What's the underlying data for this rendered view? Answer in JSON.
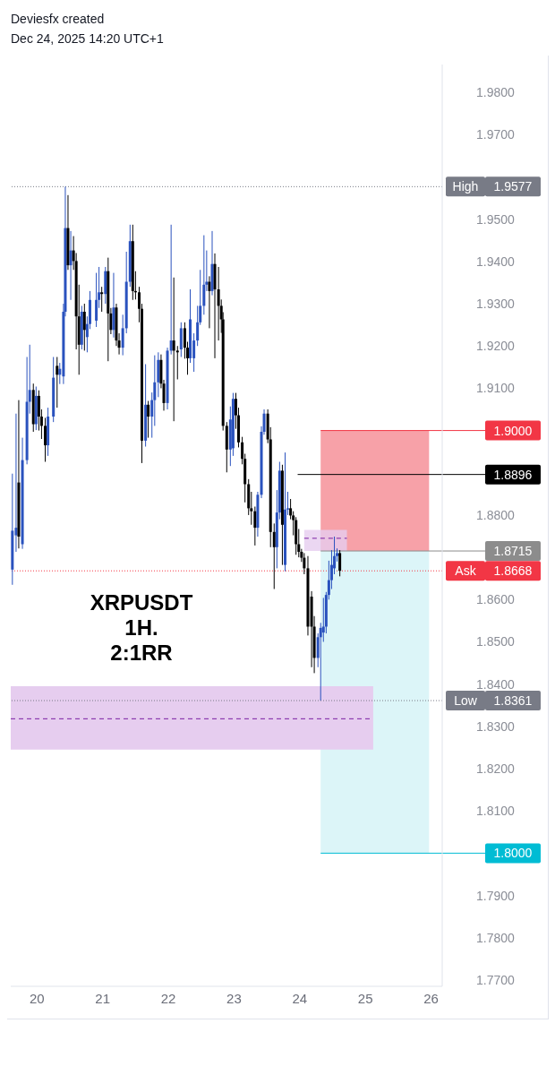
{
  "chart_data": {
    "type": "candlestick",
    "title": "XRPUSDT 1H. 2:1RR",
    "annotations": [
      "Deviesfx created",
      "Dec 24, 2025 14:20 UTC+1"
    ],
    "colors": [
      "#2a52be",
      "#2a52be",
      "#000000",
      "#2a52be",
      "#2a52be",
      "#2a52be",
      "#000000",
      "#2a52be",
      "#000000",
      "#000000",
      "#000000",
      "#2a52be",
      "#2a52be",
      "#000000",
      "#2a52be",
      "#2a52be",
      "#2a52be",
      "#000000",
      "#2a52be",
      "#000000",
      "#000000",
      "#000000",
      "#2a52be",
      "#000000",
      "#2a52be",
      "#2a52be",
      "#2a52be",
      "#2a52be",
      "#000000",
      "#2a52be",
      "#000000",
      "#000000",
      "#2a52be",
      "#000000",
      "#000000",
      "#2a52be",
      "#2a52be",
      "#2a52be",
      "#000000",
      "#000000",
      "#000000",
      "#000000",
      "#2a52be",
      "#000000",
      "#2a52be",
      "#2a52be",
      "#2a52be",
      "#000000",
      "#000000",
      "#2a52be",
      "#2a52be",
      "#000000",
      "#000000",
      "#2a52be",
      "#000000",
      "#000000",
      "#2a52be",
      "#2a52be",
      "#2a52be",
      "#2a52be",
      "#2a52be",
      "#2a52be",
      "#000000",
      "#2a52be",
      "#000000",
      "#000000",
      "#000000",
      "#000000",
      "#000000",
      "#2a52be",
      "#2a52be",
      "#000000",
      "#000000",
      "#000000",
      "#000000",
      "#000000",
      "#000000",
      "#000000",
      "#2a52be",
      "#2a52be",
      "#2a52be",
      "#000000",
      "#000000",
      "#000000",
      "#2a52be",
      "#2a52be",
      "#000000",
      "#2a52be",
      "#2a52be",
      "#000000",
      "#000000",
      "#000000",
      "#000000",
      "#000000",
      "#000000",
      "#000000",
      "#000000",
      "#000000",
      "#2a52be",
      "#2a52be",
      "#2a52be",
      "#2a52be",
      "#2a52be",
      "#2a52be",
      "#2a52be",
      "#2a52be",
      "#000000"
    ],
    "x": [
      19.625,
      19.681,
      19.722,
      19.778,
      19.847,
      19.889,
      19.944,
      19.986,
      20.028,
      20.069,
      20.125,
      20.167,
      20.25,
      20.306,
      20.347,
      20.403,
      20.431,
      20.472,
      20.514,
      20.556,
      20.597,
      20.639,
      20.681,
      20.722,
      20.764,
      20.806,
      20.903,
      20.944,
      20.986,
      21.042,
      21.083,
      21.125,
      21.167,
      21.208,
      21.25,
      21.306,
      21.361,
      21.417,
      21.458,
      21.5,
      21.556,
      21.597,
      21.653,
      21.694,
      21.75,
      21.792,
      21.847,
      21.889,
      21.931,
      21.986,
      22.042,
      22.083,
      22.139,
      22.194,
      22.25,
      22.292,
      22.333,
      22.389,
      22.444,
      22.486,
      22.542,
      22.583,
      22.625,
      22.667,
      22.708,
      22.764,
      22.806,
      22.833,
      22.889,
      22.944,
      22.986,
      23.028,
      23.069,
      23.125,
      23.167,
      23.222,
      23.264,
      23.319,
      23.361,
      23.417,
      23.458,
      23.514,
      23.556,
      23.611,
      23.653,
      23.694,
      23.736,
      23.778,
      23.819,
      23.861,
      23.903,
      23.944,
      23.986,
      24.028,
      24.069,
      24.125,
      24.181,
      24.222,
      24.278,
      24.319,
      24.361,
      24.403,
      24.444,
      24.486,
      24.528,
      24.569,
      24.611
    ],
    "ohlc": [
      [
        1.8671,
        1.8898,
        1.8635,
        1.8763
      ],
      [
        1.8752,
        1.904,
        1.8713,
        1.877
      ],
      [
        1.8877,
        1.9072,
        1.8721,
        1.8749
      ],
      [
        1.8731,
        1.8983,
        1.872,
        1.893
      ],
      [
        1.893,
        1.9174,
        1.892,
        1.9068
      ],
      [
        1.9068,
        1.9203,
        1.904,
        1.9096
      ],
      [
        1.9096,
        1.9111,
        1.8997,
        1.9015
      ],
      [
        1.9015,
        1.9104,
        1.9001,
        1.9082
      ],
      [
        1.9082,
        1.9095,
        1.9,
        1.9033
      ],
      [
        1.9033,
        1.905,
        1.898,
        1.9011
      ],
      [
        1.9011,
        1.903,
        1.8926,
        1.8965
      ],
      [
        1.8965,
        1.9054,
        1.894,
        1.9033
      ],
      [
        1.9033,
        1.9174,
        1.902,
        1.9125
      ],
      [
        1.9153,
        1.9174,
        1.9054,
        1.9132
      ],
      [
        1.9132,
        1.916,
        1.911,
        1.9146
      ],
      [
        1.9128,
        1.93,
        1.911,
        1.9281
      ],
      [
        1.9281,
        1.9577,
        1.927,
        1.9479
      ],
      [
        1.9479,
        1.9557,
        1.938,
        1.9391
      ],
      [
        1.9391,
        1.9472,
        1.9309,
        1.9426
      ],
      [
        1.9426,
        1.946,
        1.938,
        1.9401
      ],
      [
        1.9401,
        1.942,
        1.9192,
        1.927
      ],
      [
        1.927,
        1.9345,
        1.9132,
        1.9203
      ],
      [
        1.9203,
        1.9295,
        1.9192,
        1.9281
      ],
      [
        1.9281,
        1.93,
        1.9189,
        1.9238
      ],
      [
        1.9221,
        1.927,
        1.9185,
        1.9252
      ],
      [
        1.9252,
        1.933,
        1.924,
        1.9309
      ],
      [
        1.926,
        1.9373,
        1.9245,
        1.9309
      ],
      [
        1.9309,
        1.9387,
        1.929,
        1.9327
      ],
      [
        1.9327,
        1.934,
        1.9281,
        1.9323
      ],
      [
        1.9323,
        1.9387,
        1.93,
        1.9377
      ],
      [
        1.9377,
        1.9409,
        1.9164,
        1.9277
      ],
      [
        1.9277,
        1.929,
        1.9228,
        1.9238
      ],
      [
        1.9238,
        1.9373,
        1.922,
        1.9291
      ],
      [
        1.9291,
        1.93,
        1.92,
        1.9213
      ],
      [
        1.9213,
        1.923,
        1.918,
        1.9196
      ],
      [
        1.9196,
        1.9274,
        1.9178,
        1.9242
      ],
      [
        1.9242,
        1.9423,
        1.923,
        1.9352
      ],
      [
        1.9352,
        1.9487,
        1.934,
        1.9448
      ],
      [
        1.9448,
        1.9487,
        1.9309,
        1.933
      ],
      [
        1.933,
        1.9377,
        1.931,
        1.9327
      ],
      [
        1.9327,
        1.934,
        1.9256,
        1.9288
      ],
      [
        1.9288,
        1.93,
        1.8923,
        1.8976
      ],
      [
        1.8976,
        1.9157,
        1.8962,
        1.9061
      ],
      [
        1.9061,
        1.907,
        1.8983,
        1.9033
      ],
      [
        1.9033,
        1.909,
        1.8983,
        1.9072
      ],
      [
        1.9072,
        1.9178,
        1.9011,
        1.9114
      ],
      [
        1.9114,
        1.9185,
        1.9079,
        1.9167
      ],
      [
        1.9167,
        1.918,
        1.91,
        1.9111
      ],
      [
        1.9111,
        1.912,
        1.9047,
        1.9065
      ],
      [
        1.9065,
        1.9196,
        1.905,
        1.9189
      ],
      [
        1.9189,
        1.9487,
        1.918,
        1.9213
      ],
      [
        1.9213,
        1.9362,
        1.9022,
        1.9189
      ],
      [
        1.9189,
        1.92,
        1.9121,
        1.9185
      ],
      [
        1.9192,
        1.9256,
        1.9174,
        1.9242
      ],
      [
        1.9242,
        1.9256,
        1.917,
        1.9196
      ],
      [
        1.9196,
        1.921,
        1.9132,
        1.9171
      ],
      [
        1.9171,
        1.9334,
        1.916,
        1.9263
      ],
      [
        1.9171,
        1.923,
        1.9139,
        1.9213
      ],
      [
        1.9213,
        1.9295,
        1.92,
        1.9256
      ],
      [
        1.9256,
        1.938,
        1.925,
        1.9295
      ],
      [
        1.9295,
        1.9462,
        1.9274,
        1.9345
      ],
      [
        1.9345,
        1.9426,
        1.933,
        1.9352
      ],
      [
        1.9352,
        1.9365,
        1.9242,
        1.933
      ],
      [
        1.933,
        1.9472,
        1.932,
        1.9394
      ],
      [
        1.9394,
        1.9419,
        1.9171,
        1.9334
      ],
      [
        1.9334,
        1.9387,
        1.9213,
        1.9295
      ],
      [
        1.9295,
        1.931,
        1.9231,
        1.9263
      ],
      [
        1.9263,
        1.928,
        1.9,
        1.9011
      ],
      [
        1.9011,
        1.902,
        1.8901,
        1.8955
      ],
      [
        1.8955,
        1.9057,
        1.8916,
        1.9026
      ],
      [
        1.8958,
        1.9089,
        1.894,
        1.9075
      ],
      [
        1.9075,
        1.9089,
        1.9004,
        1.9036
      ],
      [
        1.9036,
        1.9054,
        1.896,
        1.8972
      ],
      [
        1.8972,
        1.8985,
        1.892,
        1.8933
      ],
      [
        1.8933,
        1.8945,
        1.883,
        1.8873
      ],
      [
        1.8873,
        1.8885,
        1.88,
        1.8816
      ],
      [
        1.8816,
        1.8855,
        1.8777,
        1.8809
      ],
      [
        1.8809,
        1.882,
        1.8728,
        1.877
      ],
      [
        1.877,
        1.8855,
        1.8749,
        1.8848
      ],
      [
        1.8848,
        1.901,
        1.884,
        1.8997
      ],
      [
        1.8997,
        1.905,
        1.899,
        1.904
      ],
      [
        1.904,
        1.905,
        1.897,
        1.8979
      ],
      [
        1.8979,
        1.9008,
        1.8724,
        1.876
      ],
      [
        1.876,
        1.878,
        1.8625,
        1.8724
      ],
      [
        1.8724,
        1.8859,
        1.8674,
        1.8806
      ],
      [
        1.8806,
        1.8926,
        1.879,
        1.8905
      ],
      [
        1.8905,
        1.8919,
        1.8682,
        1.8777
      ],
      [
        1.8682,
        1.8948,
        1.8667,
        1.8813
      ],
      [
        1.8813,
        1.8855,
        1.88,
        1.8816
      ],
      [
        1.8816,
        1.8838,
        1.879,
        1.8799
      ],
      [
        1.8799,
        1.8809,
        1.8752,
        1.8788
      ],
      [
        1.8788,
        1.8795,
        1.8706,
        1.8731
      ],
      [
        1.8731,
        1.8767,
        1.87,
        1.8713
      ],
      [
        1.8713,
        1.872,
        1.8689,
        1.8699
      ],
      [
        1.8699,
        1.871,
        1.866,
        1.8674
      ],
      [
        1.8674,
        1.8703,
        1.8515,
        1.8536
      ],
      [
        1.8607,
        1.862,
        1.844,
        1.8536
      ],
      [
        1.8536,
        1.8561,
        1.8426,
        1.8462
      ],
      [
        1.8462,
        1.852,
        1.844,
        1.8511
      ],
      [
        1.8511,
        1.8545,
        1.8361,
        1.8533
      ],
      [
        1.8522,
        1.8604,
        1.85,
        1.8536
      ],
      [
        1.8536,
        1.8618,
        1.852,
        1.8611
      ],
      [
        1.8611,
        1.8692,
        1.86,
        1.8646
      ],
      [
        1.8646,
        1.8717,
        1.8625,
        1.8682
      ],
      [
        1.8674,
        1.8749,
        1.866,
        1.8703
      ],
      [
        1.8703,
        1.8721,
        1.869,
        1.871
      ],
      [
        1.871,
        1.8717,
        1.8655,
        1.8668
      ]
    ],
    "xlim": [
      19.6,
      26.17
    ],
    "xticks": [
      20,
      21,
      22,
      23,
      24,
      25,
      26
    ],
    "ylim": [
      1.7685,
      1.9866
    ],
    "yticks": [
      {
        "value": 1.77,
        "label": "1.7700"
      },
      {
        "value": 1.78,
        "label": "1.7800"
      },
      {
        "value": 1.79,
        "label": "1.7900"
      },
      {
        "value": 1.81,
        "label": "1.8100"
      },
      {
        "value": 1.82,
        "label": "1.8200"
      },
      {
        "value": 1.83,
        "label": "1.8300"
      },
      {
        "value": 1.84,
        "label": "1.8400"
      },
      {
        "value": 1.85,
        "label": "1.8500"
      },
      {
        "value": 1.86,
        "label": "1.8600"
      },
      {
        "value": 1.88,
        "label": "1.8800"
      },
      {
        "value": 1.91,
        "label": "1.9100"
      },
      {
        "value": 1.92,
        "label": "1.9200"
      },
      {
        "value": 1.93,
        "label": "1.9300"
      },
      {
        "value": 1.94,
        "label": "1.9400"
      },
      {
        "value": 1.95,
        "label": "1.9500"
      },
      {
        "value": 1.97,
        "label": "1.9700"
      },
      {
        "value": 1.98,
        "label": "1.9800"
      }
    ],
    "bands": [
      {
        "axis": "y",
        "from": 1.8715,
        "to": 1.9,
        "color": "#f7a1a8"
      },
      {
        "axis": "y",
        "from": 1.8,
        "to": 1.8715,
        "color": "#dcf5f8"
      },
      {
        "axis": "y",
        "from": 1.8245,
        "to": 1.8395,
        "color": "#e6cdef"
      },
      {
        "axis": "y",
        "from": 1.8715,
        "to": 1.8765,
        "color": "#e6cdef"
      }
    ],
    "ref_lines": [
      {
        "axis": "y",
        "value": 1.9577,
        "label": "High 1.9577",
        "color": "#787b86",
        "line_style": "dotted"
      },
      {
        "axis": "y",
        "value": 1.8361,
        "label": "Low 1.8361",
        "color": "#787b86",
        "line_style": "dotted"
      },
      {
        "axis": "y",
        "value": 1.8668,
        "label": "Ask 1.8668",
        "color": "#f23645",
        "line_style": "dotted"
      },
      {
        "axis": "y",
        "value": 1.8896,
        "label": "1.8896",
        "color": "#000000",
        "line_style": "solid"
      },
      {
        "axis": "y",
        "value": 1.8715,
        "label": "1.8715",
        "color": "#8c8c8c",
        "line_style": "solid"
      },
      {
        "axis": "y",
        "value": 1.9,
        "label": "1.9000",
        "color": "#f23645",
        "line_style": "solid"
      },
      {
        "axis": "y",
        "value": 1.8,
        "label": "1.8000",
        "color": "#00bcd4",
        "line_style": "solid"
      },
      {
        "axis": "y",
        "value": 1.8745,
        "color": "#7b1fa2",
        "line_style": "dashed"
      },
      {
        "axis": "y",
        "value": 1.8318,
        "color": "#7b1fa2",
        "line_style": "dashed"
      }
    ],
    "grid": false
  }
}
